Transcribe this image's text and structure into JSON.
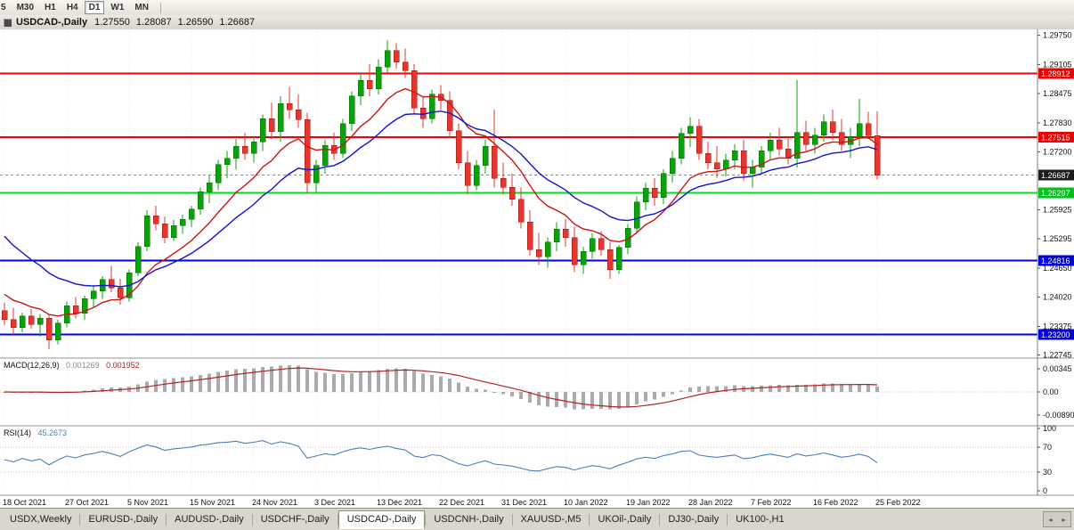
{
  "toolbar": {
    "timeframe_buttons": [
      {
        "label": "5",
        "active": false,
        "clipped": true
      },
      {
        "label": "M30",
        "active": false
      },
      {
        "label": "H1",
        "active": false
      },
      {
        "label": "H4",
        "active": false
      },
      {
        "label": "D1",
        "active": true
      },
      {
        "label": "W1",
        "active": false
      },
      {
        "label": "MN",
        "active": false
      }
    ]
  },
  "title_bar": {
    "title": "USDCAD-,Daily",
    "ohlc": {
      "open": "1.27550",
      "high": "1.28087",
      "low": "1.26590",
      "close": "1.26687"
    }
  },
  "price_axis": {
    "labels": [
      "1.29750",
      "1.29105",
      "1.28475",
      "1.27830",
      "1.27200",
      "1.25925",
      "1.25295",
      "1.24650",
      "1.24020",
      "1.23375",
      "1.22745"
    ],
    "tags": [
      {
        "text": "1.28912",
        "price": 1.28912,
        "color": "#ee0000",
        "text_color": "#ffffff"
      },
      {
        "text": "1.27515",
        "price": 1.27515,
        "color": "#ee0000",
        "text_color": "#ffffff"
      },
      {
        "text": "1.26687",
        "price": 1.26687,
        "color": "#1c1c1c",
        "text_color": "#ffffff"
      },
      {
        "text": "1.26297",
        "price": 1.26297,
        "color": "#00c21d",
        "text_color": "#ffffff"
      },
      {
        "text": "1.24816",
        "price": 1.24816,
        "color": "#0000dd",
        "text_color": "#ffffff"
      },
      {
        "text": "1.23200",
        "price": 1.232,
        "color": "#0000dd",
        "text_color": "#ffffff"
      }
    ]
  },
  "chart_data": {
    "type": "candlestick",
    "symbol": "USDCAD-",
    "timeframe": "Daily",
    "ohlc_display": {
      "open": 1.2755,
      "high": 1.28087,
      "low": 1.2659,
      "close": 1.26687
    },
    "current_price": 1.26687,
    "y_axis_range": {
      "top": 1.2988,
      "bottom": 1.2268
    },
    "up_color": "#09a309",
    "down_color": "#e8352e",
    "x_label_interval": 7,
    "x_labels": [
      "18 Oct 2021",
      "27 Oct 2021",
      "5 Nov 2021",
      "15 Nov 2021",
      "24 Nov 2021",
      "3 Dec 2021",
      "13 Dec 2021",
      "22 Dec 2021",
      "31 Dec 2021",
      "10 Jan 2022",
      "19 Jan 2022",
      "28 Jan 2022",
      "7 Feb 2022",
      "16 Feb 2022",
      "25 Feb 2022"
    ],
    "horizontal_lines": [
      {
        "price": 1.28912,
        "color": "#f00000",
        "width": 2,
        "role": "resistance"
      },
      {
        "price": 1.27515,
        "color": "#f00000",
        "width": 2,
        "role": "resistance"
      },
      {
        "price": 1.26297,
        "color": "#00e01e",
        "width": 2,
        "role": "support"
      },
      {
        "price": 1.24816,
        "color": "#0000e6",
        "width": 2,
        "role": "support"
      },
      {
        "price": 1.232,
        "color": "#0000e6",
        "width": 2,
        "role": "support"
      }
    ],
    "moving_averages": [
      {
        "name": "fast-ma-line",
        "color": "#cc1414",
        "alpha": 0.18,
        "seed": 1.242
      },
      {
        "name": "slow-ma-line",
        "color": "#1414cc",
        "alpha": 0.1,
        "seed": 1.2555
      }
    ],
    "candles": [
      [
        1.2372,
        1.239,
        1.234,
        1.2352
      ],
      [
        1.2352,
        1.2378,
        1.232,
        1.2335
      ],
      [
        1.2335,
        1.2368,
        1.2325,
        1.236
      ],
      [
        1.236,
        1.2375,
        1.2332,
        1.2342
      ],
      [
        1.2342,
        1.2365,
        1.2315,
        1.2355
      ],
      [
        1.2355,
        1.2362,
        1.2288,
        1.2308
      ],
      [
        1.2308,
        1.2352,
        1.2298,
        1.2345
      ],
      [
        1.2345,
        1.2392,
        1.2335,
        1.2383
      ],
      [
        1.2383,
        1.2402,
        1.2355,
        1.2366
      ],
      [
        1.2366,
        1.2405,
        1.2352,
        1.2398
      ],
      [
        1.2398,
        1.2428,
        1.238,
        1.2415
      ],
      [
        1.2415,
        1.2448,
        1.2398,
        1.244
      ],
      [
        1.244,
        1.247,
        1.2412,
        1.2422
      ],
      [
        1.2422,
        1.2442,
        1.2385,
        1.24
      ],
      [
        1.24,
        1.2462,
        1.2392,
        1.2455
      ],
      [
        1.2455,
        1.2522,
        1.2448,
        1.2512
      ],
      [
        1.2512,
        1.2592,
        1.2502,
        1.258
      ],
      [
        1.258,
        1.2602,
        1.2548,
        1.2562
      ],
      [
        1.2562,
        1.2578,
        1.252,
        1.2532
      ],
      [
        1.2532,
        1.257,
        1.2525,
        1.2558
      ],
      [
        1.2558,
        1.2582,
        1.254,
        1.2572
      ],
      [
        1.2572,
        1.2602,
        1.2555,
        1.2594
      ],
      [
        1.2594,
        1.2642,
        1.2582,
        1.2632
      ],
      [
        1.2632,
        1.2668,
        1.2608,
        1.2652
      ],
      [
        1.2652,
        1.2702,
        1.2636,
        1.2692
      ],
      [
        1.2692,
        1.2722,
        1.2662,
        1.2706
      ],
      [
        1.2706,
        1.2748,
        1.2682,
        1.2732
      ],
      [
        1.2732,
        1.2762,
        1.2702,
        1.2716
      ],
      [
        1.2716,
        1.2752,
        1.2696,
        1.2742
      ],
      [
        1.2742,
        1.2802,
        1.2722,
        1.2792
      ],
      [
        1.2792,
        1.2828,
        1.2748,
        1.2764
      ],
      [
        1.2764,
        1.2842,
        1.2742,
        1.2826
      ],
      [
        1.2826,
        1.2862,
        1.2792,
        1.2812
      ],
      [
        1.2812,
        1.2846,
        1.2772,
        1.279
      ],
      [
        1.279,
        1.2806,
        1.2628,
        1.2652
      ],
      [
        1.2652,
        1.2702,
        1.2632,
        1.269
      ],
      [
        1.269,
        1.2746,
        1.2672,
        1.2734
      ],
      [
        1.2734,
        1.2762,
        1.2702,
        1.2716
      ],
      [
        1.2716,
        1.2792,
        1.2706,
        1.2782
      ],
      [
        1.2782,
        1.2852,
        1.2766,
        1.2842
      ],
      [
        1.2842,
        1.2892,
        1.2822,
        1.2876
      ],
      [
        1.2876,
        1.2912,
        1.2842,
        1.2858
      ],
      [
        1.2858,
        1.2922,
        1.2846,
        1.2906
      ],
      [
        1.2906,
        1.2965,
        1.2892,
        1.2942
      ],
      [
        1.2942,
        1.2958,
        1.2902,
        1.2916
      ],
      [
        1.2916,
        1.2946,
        1.2882,
        1.2898
      ],
      [
        1.2898,
        1.2912,
        1.2802,
        1.2816
      ],
      [
        1.2816,
        1.2842,
        1.2772,
        1.2792
      ],
      [
        1.2792,
        1.2856,
        1.2782,
        1.2846
      ],
      [
        1.2846,
        1.2866,
        1.2812,
        1.2832
      ],
      [
        1.2832,
        1.2852,
        1.2752,
        1.2766
      ],
      [
        1.2766,
        1.2782,
        1.2682,
        1.2696
      ],
      [
        1.2696,
        1.2722,
        1.2626,
        1.2646
      ],
      [
        1.2646,
        1.2702,
        1.2636,
        1.269
      ],
      [
        1.269,
        1.2746,
        1.2672,
        1.2732
      ],
      [
        1.2732,
        1.2812,
        1.2642,
        1.2662
      ],
      [
        1.2662,
        1.2696,
        1.2626,
        1.2642
      ],
      [
        1.2642,
        1.2672,
        1.2602,
        1.2616
      ],
      [
        1.2616,
        1.2642,
        1.2552,
        1.2566
      ],
      [
        1.2566,
        1.2592,
        1.2492,
        1.2506
      ],
      [
        1.2506,
        1.2542,
        1.2472,
        1.249
      ],
      [
        1.249,
        1.2532,
        1.2466,
        1.2522
      ],
      [
        1.2522,
        1.2566,
        1.2502,
        1.255
      ],
      [
        1.255,
        1.2572,
        1.2512,
        1.2532
      ],
      [
        1.2532,
        1.2556,
        1.2456,
        1.2472
      ],
      [
        1.2472,
        1.2512,
        1.2452,
        1.2502
      ],
      [
        1.2502,
        1.2542,
        1.2486,
        1.253
      ],
      [
        1.253,
        1.2546,
        1.2492,
        1.2506
      ],
      [
        1.2506,
        1.2522,
        1.2442,
        1.2462
      ],
      [
        1.2462,
        1.2516,
        1.2452,
        1.251
      ],
      [
        1.251,
        1.2562,
        1.2496,
        1.2552
      ],
      [
        1.2552,
        1.2622,
        1.2542,
        1.261
      ],
      [
        1.261,
        1.2652,
        1.2592,
        1.264
      ],
      [
        1.264,
        1.2662,
        1.2602,
        1.262
      ],
      [
        1.262,
        1.2682,
        1.2606,
        1.2672
      ],
      [
        1.2672,
        1.2722,
        1.2652,
        1.2706
      ],
      [
        1.2706,
        1.2772,
        1.2692,
        1.276
      ],
      [
        1.276,
        1.2796,
        1.273,
        1.2776
      ],
      [
        1.2776,
        1.2792,
        1.2702,
        1.2716
      ],
      [
        1.2716,
        1.2742,
        1.2682,
        1.2696
      ],
      [
        1.2696,
        1.2732,
        1.2662,
        1.2682
      ],
      [
        1.2682,
        1.2716,
        1.2666,
        1.2702
      ],
      [
        1.2702,
        1.2736,
        1.2682,
        1.2722
      ],
      [
        1.2722,
        1.2746,
        1.2656,
        1.2672
      ],
      [
        1.2672,
        1.2702,
        1.2642,
        1.2686
      ],
      [
        1.2686,
        1.2732,
        1.2672,
        1.2722
      ],
      [
        1.2722,
        1.2762,
        1.2702,
        1.2746
      ],
      [
        1.2746,
        1.2772,
        1.2712,
        1.2726
      ],
      [
        1.2726,
        1.2752,
        1.2692,
        1.2706
      ],
      [
        1.2706,
        1.2877,
        1.2686,
        1.2762
      ],
      [
        1.2762,
        1.2788,
        1.2722,
        1.2736
      ],
      [
        1.2736,
        1.2772,
        1.2716,
        1.2756
      ],
      [
        1.2756,
        1.2802,
        1.2742,
        1.2786
      ],
      [
        1.2786,
        1.2812,
        1.2746,
        1.2762
      ],
      [
        1.2762,
        1.2792,
        1.2722,
        1.2736
      ],
      [
        1.2736,
        1.2772,
        1.2706,
        1.2752
      ],
      [
        1.2752,
        1.2836,
        1.2732,
        1.2782
      ],
      [
        1.2782,
        1.2808,
        1.2748,
        1.2755
      ],
      [
        1.2755,
        1.28087,
        1.2659,
        1.26687
      ]
    ]
  },
  "macd_panel": {
    "label": "MACD(12,26,9)",
    "value_main": "0.001269",
    "value_signal": "0.001952",
    "params": {
      "fast": 12,
      "slow": 26,
      "signal": 9
    },
    "axis_labels": [
      "0.00345",
      "0.00",
      "-0.00890"
    ],
    "histogram_color": "#ababab",
    "signal_color": "#b22222"
  },
  "rsi_panel": {
    "label": "RSI(14)",
    "value": "45.2673",
    "period": 14,
    "levels": [
      70,
      30
    ],
    "axis_labels": [
      "100",
      "70",
      "30",
      "0"
    ],
    "line_color": "#4a7ebb"
  },
  "tabs": {
    "items": [
      {
        "label": "USDX,Weekly",
        "active": false
      },
      {
        "label": "EURUSD-,Daily",
        "active": false
      },
      {
        "label": "AUDUSD-,Daily",
        "active": false
      },
      {
        "label": "USDCHF-,Daily",
        "active": false
      },
      {
        "label": "USDCAD-,Daily",
        "active": true
      },
      {
        "label": "USDCNH-,Daily",
        "active": false
      },
      {
        "label": "XAUUSD-,M5",
        "active": false
      },
      {
        "label": "UKOil-,Daily",
        "active": false
      },
      {
        "label": "DJ30-,Daily",
        "active": false
      },
      {
        "label": "UK100-,H1",
        "active": false
      }
    ]
  }
}
